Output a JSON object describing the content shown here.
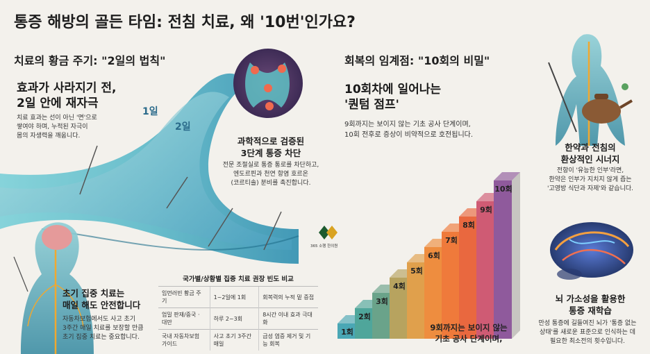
{
  "title": "통증 해방의 골든 타임: 전침 치료, 왜 '10번'인가요?",
  "left_section": {
    "heading": "치료의 황금 주기: \"2일의 법칙\"",
    "subhead_line1": "효과가 사라지기 전,",
    "subhead_line2": "2일 안에 재자극",
    "body_line1": "치료 효과는 선이 아닌 '면'으로",
    "body_line2": "쌓여야 하며, 누적된 자극이",
    "body_line3": "몸의 자생력을 깨웁니다.",
    "wave_label_1": "1일",
    "wave_label_2": "2일"
  },
  "center_block": {
    "heading_line1": "과학적으로 검증된",
    "heading_line2": "3단계 통증 차단",
    "body_line1": "전문 조절실로 통증 통로를 차단하고,",
    "body_line2": "엔도르핀과 천연 항염 호르온",
    "body_line3": "(코르티솔) 분비를 촉진합니다."
  },
  "logo": {
    "text": "365 소행 한의원"
  },
  "early_block": {
    "heading_line1": "초기 집중 치료는",
    "heading_line2": "매일 해도 안전합니다",
    "body_line1": "자동차보험에서도 사고 초기",
    "body_line2": "3주간 매일 치료를 보장할 만큼",
    "body_line3": "초기 집중 치료는 중요합니다."
  },
  "freq_table": {
    "title": "국가별/상황별 집중 치료 권장 빈도 비교",
    "rows": [
      [
        "임먼러빈 황금 주기",
        "1~2일에 1회",
        "회복력의 누적 밑 증접"
      ],
      [
        "엄밀 판재/중국 · 대만",
        "하루 2~3회",
        "8시간 이내 효과 극대화"
      ],
      [
        "국내 자동차보험 가이드",
        "사고 초기 3주간 매일",
        "급성 염증 제거 및 기능 회복"
      ]
    ]
  },
  "right_section": {
    "heading": "회복의 임계점: \"10회의 비밀\"",
    "subhead_line1": "10회차에 일어나는",
    "subhead_line2": "'퀀텀 점프'",
    "body_line1": "9회까지는 보이지 않는 기초 공사 단계이며,",
    "body_line2": "10회 전후로 증상이 비약적으로 호전됩니다.",
    "stairs_caption_line1": "9회까지는 보이지 않는",
    "stairs_caption_line2": "기초 공사 단계이며,"
  },
  "stairs": {
    "steps": [
      "1회",
      "2회",
      "3회",
      "4회",
      "5회",
      "6회",
      "7회",
      "8회",
      "9회",
      "10회"
    ],
    "colors": [
      "#4aa7b5",
      "#4fa69b",
      "#6aa38a",
      "#b7a35f",
      "#e0a04c",
      "#ee8d3f",
      "#ef7a3b",
      "#e9683f",
      "#cf5b74",
      "#8f5a9c"
    ]
  },
  "herb_block": {
    "heading_line1": "한약과 전침의",
    "heading_line2": "환상적인 시너지",
    "body_line1": "전항이 '유능한 인부'라면,",
    "body_line2": "한약은 인부가 지치지 않게 즙는",
    "body_line3": "'고영방 식단과 자제'와 같습니다."
  },
  "brain_block": {
    "heading_line1": "뇌 가소성을 활용한",
    "heading_line2": "통증 재학습",
    "body_line1": "만성 통증에 길들여진 뇌가 '통증 없는",
    "body_line2": "상태'를 새로운 표준으로 인식하는 데",
    "body_line3": "필요한 최소전의 횟수입니다."
  }
}
